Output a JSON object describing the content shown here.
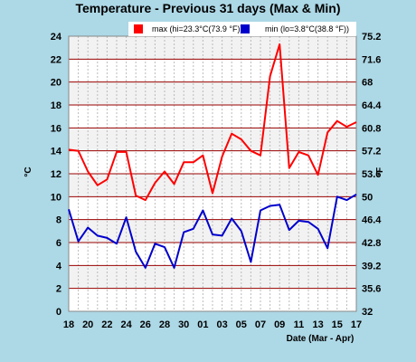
{
  "chart_data": {
    "type": "line",
    "title": "Temperature - Previous 31 days (Max & Min)",
    "xlabel": "Date (Mar - Apr)",
    "ylabel_left": "°C",
    "ylabel_right": "°F",
    "x_tick_labels": [
      "18",
      "20",
      "22",
      "24",
      "26",
      "28",
      "30",
      "01",
      "03",
      "05",
      "07",
      "09",
      "11",
      "13",
      "15",
      "17"
    ],
    "y_left_ticks": [
      "0",
      "2",
      "4",
      "6",
      "8",
      "10",
      "12",
      "14",
      "16",
      "18",
      "20",
      "22",
      "24"
    ],
    "y_right_ticks": [
      "32",
      "35.6",
      "39.2",
      "42.8",
      "46.4",
      "50",
      "53.6",
      "57.2",
      "60.8",
      "64.4",
      "68",
      "71.6",
      "75.2"
    ],
    "ylim": [
      0,
      24
    ],
    "grid": true,
    "legend_position": "top-right",
    "colors": {
      "max": "#ff0000",
      "min": "#0000cc",
      "band_light": "#f2f2f2",
      "band_white": "#ffffff",
      "gridline": "#990000",
      "background": "#add8e6"
    },
    "series": [
      {
        "name": "max",
        "legend": "max (hi=23.3°C(73.9 °F))",
        "values": [
          14.1,
          14.0,
          12.2,
          11.0,
          11.5,
          13.9,
          13.9,
          10.1,
          9.7,
          11.2,
          12.2,
          11.1,
          13.0,
          13.0,
          13.6,
          10.3,
          13.5,
          15.5,
          15.0,
          14.0,
          13.6,
          20.5,
          23.3,
          12.5,
          13.9,
          13.6,
          11.9,
          15.6,
          16.6,
          16.1,
          16.5
        ]
      },
      {
        "name": "min",
        "legend": "min (lo=3.8°C(38.8 °F))",
        "values": [
          8.9,
          6.1,
          7.3,
          6.6,
          6.4,
          5.9,
          8.2,
          5.2,
          3.8,
          5.9,
          5.6,
          3.8,
          6.9,
          7.2,
          8.8,
          6.7,
          6.6,
          8.1,
          7.0,
          4.3,
          8.8,
          9.2,
          9.3,
          7.1,
          7.9,
          7.8,
          7.2,
          5.5,
          10.0,
          9.7,
          10.2
        ]
      }
    ]
  }
}
